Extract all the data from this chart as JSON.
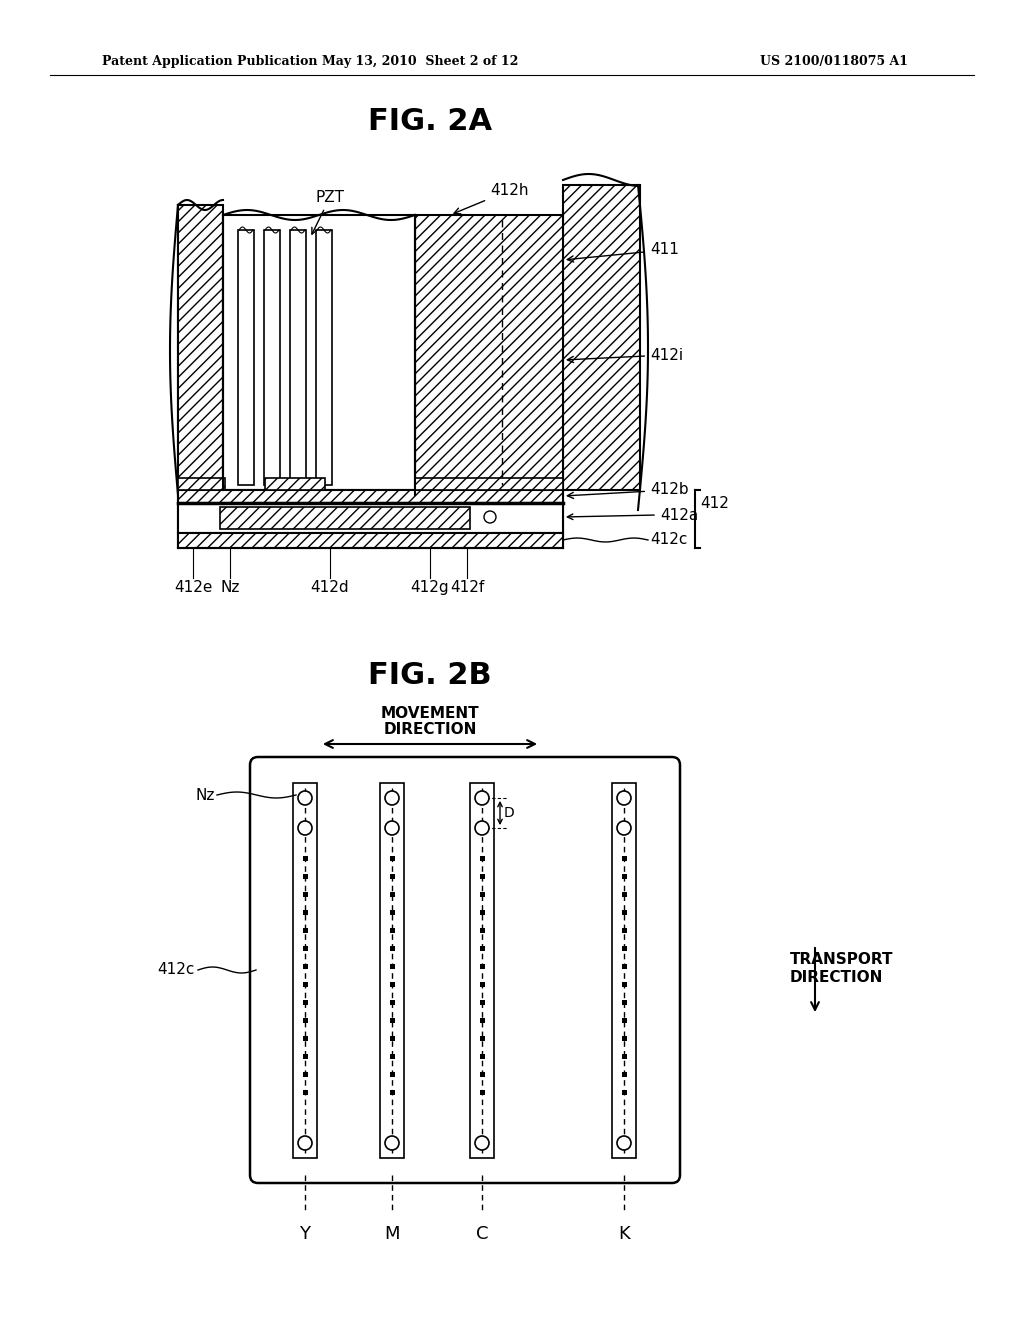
{
  "bg_color": "#ffffff",
  "header_left": "Patent Application Publication",
  "header_mid": "May 13, 2010  Sheet 2 of 12",
  "header_right": "US 2100/0118075 A1",
  "fig2a_title": "FIG. 2A",
  "fig2b_title": "FIG. 2B",
  "color_labels": [
    "Y",
    "M",
    "C",
    "K"
  ]
}
